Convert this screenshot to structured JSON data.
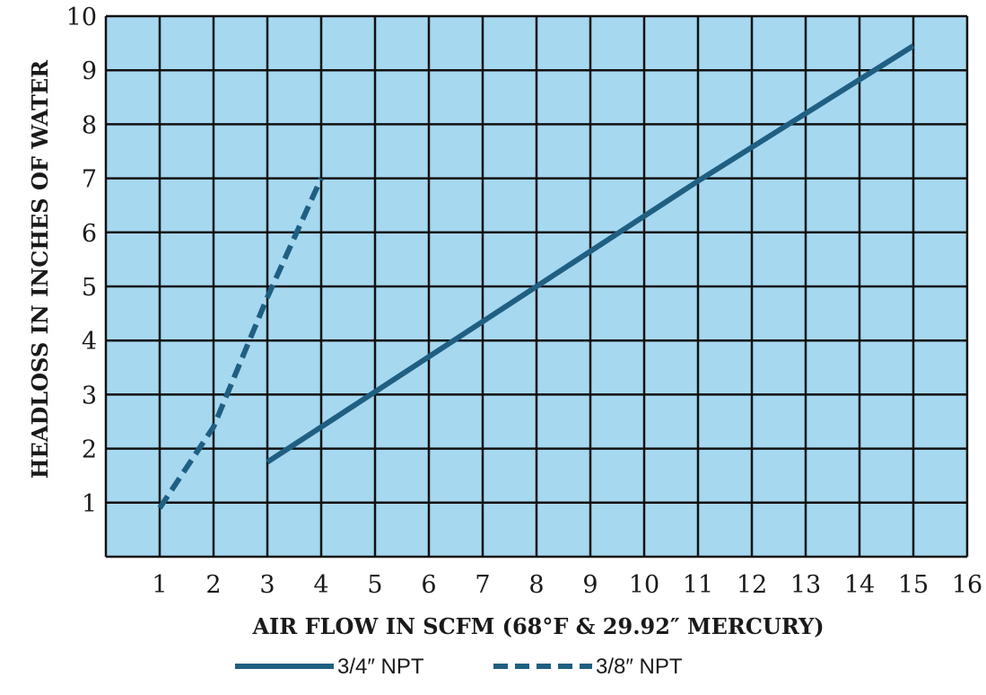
{
  "chart_data": {
    "type": "line",
    "xlabel": "AIR FLOW IN SCFM (68°F & 29.92″ MERCURY)",
    "ylabel": "HEADLOSS IN INCHES OF WATER",
    "xlim": [
      0,
      16
    ],
    "ylim": [
      0,
      10
    ],
    "x_ticks": [
      1,
      2,
      3,
      4,
      5,
      6,
      7,
      8,
      9,
      10,
      11,
      12,
      13,
      14,
      15,
      16
    ],
    "y_ticks": [
      1,
      2,
      3,
      4,
      5,
      6,
      7,
      8,
      9,
      10
    ],
    "grid": true,
    "legend_position": "bottom",
    "series": [
      {
        "name": "3/4″ NPT",
        "style": "solid",
        "color": "#1f5f82",
        "points": [
          [
            3,
            1.75
          ],
          [
            5,
            3.05
          ],
          [
            8,
            5.0
          ],
          [
            11,
            6.95
          ],
          [
            15,
            9.45
          ]
        ]
      },
      {
        "name": "3/8″ NPT",
        "style": "dashed",
        "color": "#1f5f82",
        "points": [
          [
            1,
            0.9
          ],
          [
            2,
            2.4
          ],
          [
            3,
            4.8
          ],
          [
            4,
            7.0
          ]
        ]
      }
    ]
  },
  "colors": {
    "plot_background": "#a6d8f0",
    "grid": "#111111",
    "series": "#1f5f82"
  }
}
